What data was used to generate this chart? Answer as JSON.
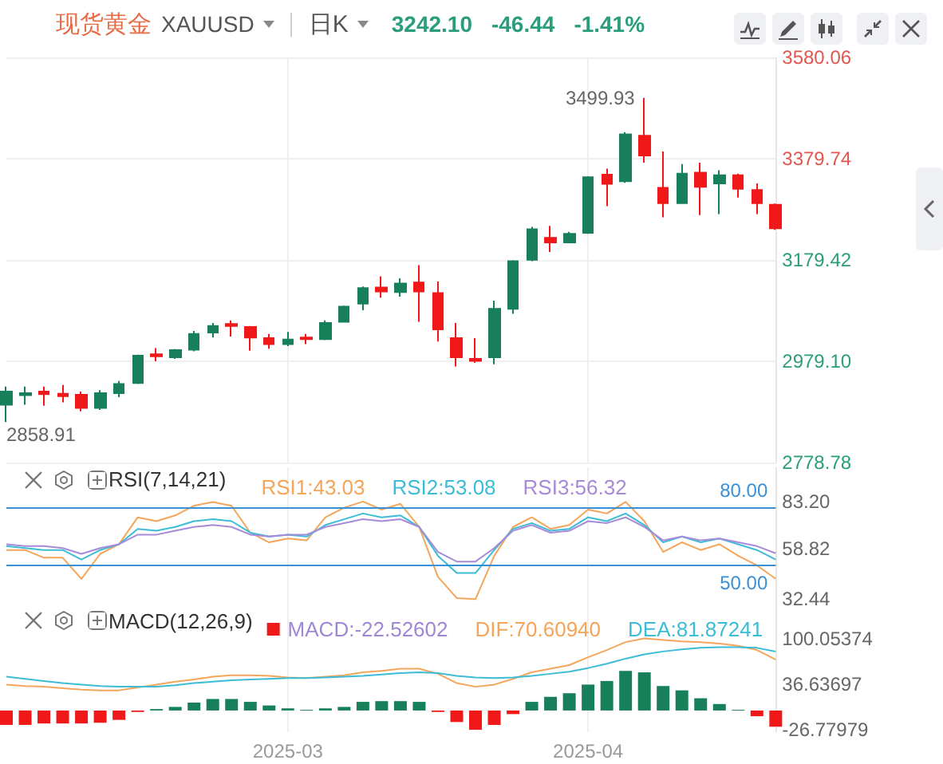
{
  "chart_data": [
    {
      "type": "candlestick",
      "title": "现货黄金",
      "subtitle": "XAUUSD",
      "annotations": [
        "日K",
        "3242.10",
        "-46.44",
        "-1.41%",
        "3499.93",
        "2858.91"
      ],
      "categories": [
        null,
        null,
        null,
        null,
        null,
        null,
        null,
        null,
        null,
        null,
        null,
        null,
        null,
        null,
        null,
        "2025-03",
        null,
        null,
        null,
        null,
        null,
        null,
        null,
        null,
        null,
        null,
        null,
        null,
        null,
        null,
        null,
        "2025-04",
        null,
        null,
        null,
        null,
        null,
        null,
        null,
        null,
        null,
        null
      ],
      "ohlc": [
        [
          2893,
          2929,
          2858.91,
          2919
        ],
        [
          2912,
          2929,
          2893,
          2916
        ],
        [
          2919,
          2929,
          2891,
          2914
        ],
        [
          2915,
          2932,
          2898,
          2910
        ],
        [
          2913,
          2919,
          2880,
          2887
        ],
        [
          2887,
          2922,
          2883,
          2916
        ],
        [
          2916,
          2940,
          2908,
          2934
        ],
        [
          2936,
          2992,
          2934,
          2990
        ],
        [
          2993,
          3005,
          2979,
          2989
        ],
        [
          2987,
          3003,
          2984,
          3001
        ],
        [
          3002,
          3039,
          2999,
          3033
        ],
        [
          3036,
          3055,
          3026,
          3049
        ],
        [
          3053,
          3060,
          3028,
          3049
        ],
        [
          3047,
          3049,
          3000,
          3026
        ],
        [
          3025,
          3033,
          3004,
          3013
        ],
        [
          3013,
          3037,
          3009,
          3022
        ],
        [
          3026,
          3033,
          3013,
          3023
        ],
        [
          3023,
          3060,
          3021,
          3055
        ],
        [
          3057,
          3089,
          3057,
          3087
        ],
        [
          3093,
          3127,
          3080,
          3124
        ],
        [
          3125,
          3147,
          3105,
          3117
        ],
        [
          3116,
          3143,
          3107,
          3133
        ],
        [
          3135,
          3169,
          3057,
          3117
        ],
        [
          3114,
          3137,
          3018,
          3042
        ],
        [
          3025,
          3055,
          2969,
          2987
        ],
        [
          2984,
          3025,
          2976,
          2980
        ],
        [
          2987,
          3099,
          2973,
          3083
        ],
        [
          3083,
          3179,
          3073,
          3177
        ],
        [
          3180,
          3245,
          3177,
          3240
        ],
        [
          3223,
          3247,
          3195,
          3214
        ],
        [
          3214,
          3235,
          3214,
          3231
        ],
        [
          3233,
          3345,
          3231,
          3343
        ],
        [
          3348,
          3360,
          3286,
          3330
        ],
        [
          3335,
          3432,
          3332,
          3428
        ],
        [
          3425,
          3499.93,
          3372,
          3386
        ],
        [
          3322,
          3394,
          3264,
          3292
        ],
        [
          3292,
          3369,
          3292,
          3350
        ],
        [
          3352,
          3372,
          3268,
          3324
        ],
        [
          3331,
          3357,
          3270,
          3347
        ],
        [
          3347,
          3350,
          3303,
          3320
        ],
        [
          3318,
          3331,
          3270,
          3292
        ],
        [
          3288.54,
          3291,
          3239,
          3242.1
        ]
      ],
      "colors": [
        "#17805a",
        "#17805a",
        "#f01818",
        "#f01818",
        "#f01818",
        "#17805a",
        "#17805a",
        "#17805a",
        "#f01818",
        "#17805a",
        "#17805a",
        "#17805a",
        "#f01818",
        "#f01818",
        "#f01818",
        "#17805a",
        "#f01818",
        "#17805a",
        "#17805a",
        "#17805a",
        "#f01818",
        "#17805a",
        "#f01818",
        "#f01818",
        "#f01818",
        "#f01818",
        "#17805a",
        "#17805a",
        "#17805a",
        "#f01818",
        "#17805a",
        "#17805a",
        "#f01818",
        "#17805a",
        "#f01818",
        "#f01818",
        "#17805a",
        "#f01818",
        "#17805a",
        "#f01818",
        "#f01818",
        "#f01818"
      ],
      "ylim": [
        2778.78,
        3580.06
      ],
      "yticks": [
        2778.78,
        {
          "value": 2979.1,
          "label": "2979.10"
        },
        3179.42,
        3379.74,
        3580.06
      ],
      "grid": true,
      "tick_labels": "y"
    },
    {
      "type": "line",
      "legend_title": "RSI(7,14,21)",
      "categories": [
        null,
        null,
        null,
        null,
        null,
        null,
        null,
        null,
        null,
        null,
        null,
        null,
        null,
        null,
        null,
        "2025-03",
        null,
        null,
        null,
        null,
        null,
        null,
        null,
        null,
        null,
        null,
        null,
        null,
        null,
        null,
        null,
        "2025-04",
        null,
        null,
        null,
        null,
        null,
        null,
        null,
        null,
        null,
        null
      ],
      "series": [
        {
          "name": "RSI1:43.03",
          "color": "#f5a55a",
          "values": [
            58,
            58,
            54,
            54,
            43,
            56,
            61,
            75,
            73,
            76,
            81,
            83,
            81,
            67,
            62,
            64,
            63,
            75,
            80,
            83.2,
            79,
            82,
            70,
            44,
            33,
            32.44,
            55,
            70,
            75,
            69,
            71,
            79,
            77,
            83,
            73,
            57,
            62,
            58,
            61,
            55,
            50,
            43.03
          ]
        },
        {
          "name": "RSI2:53.08",
          "color": "#3cbcd6",
          "values": [
            60,
            59,
            58,
            58,
            53,
            58,
            61,
            69,
            68,
            70,
            73,
            74,
            73,
            67,
            65,
            66,
            65,
            71,
            74,
            77,
            75,
            76,
            70,
            55,
            46,
            46,
            58,
            69,
            72,
            68,
            69,
            75,
            73,
            77,
            71,
            62,
            65,
            62,
            64,
            61,
            58,
            53.08
          ]
        },
        {
          "name": "RSI3:56.32",
          "color": "#a78bd9",
          "values": [
            61,
            60,
            60,
            59,
            56,
            59,
            61,
            66,
            66,
            68,
            70,
            71,
            70,
            66,
            65,
            66,
            66,
            70,
            72,
            74,
            73,
            74,
            70,
            57,
            52,
            52,
            59,
            68,
            71,
            67,
            68,
            73,
            72,
            75,
            70,
            63,
            65,
            63,
            64,
            62,
            60,
            56.32
          ]
        }
      ],
      "ylim": [
        28,
        101
      ],
      "yticks": [
        32.44,
        58.82,
        {
          "value": 83.2,
          "label": "83.20"
        }
      ],
      "ref_lines": [
        {
          "axis": "y",
          "value": 80,
          "label": "80.00",
          "color": "#3a90d6"
        },
        {
          "axis": "y",
          "value": 50,
          "label": "50.00",
          "color": "#3a90d6"
        }
      ],
      "legend": "top",
      "grid": "x",
      "tick_labels": "y",
      "marker": "none"
    },
    {
      "type": "line",
      "legend_title": "MACD(12,26,9)",
      "categories": [
        null,
        null,
        null,
        null,
        null,
        null,
        null,
        null,
        null,
        null,
        null,
        null,
        null,
        null,
        null,
        "2025-03",
        null,
        null,
        null,
        null,
        null,
        null,
        null,
        null,
        null,
        null,
        null,
        null,
        null,
        null,
        null,
        "2025-04",
        null,
        null,
        null,
        null,
        null,
        null,
        null,
        null,
        null,
        null
      ],
      "series": [
        {
          "name": "MACD:-22.52602",
          "type": "bar",
          "colors": [
            "#f01818",
            "#f01818",
            "#f01818",
            "#f01818",
            "#f01818",
            "#f01818",
            "#f01818",
            "#f01818",
            "#17805a",
            "#17805a",
            "#17805a",
            "#17805a",
            "#17805a",
            "#17805a",
            "#17805a",
            "#17805a",
            "#17805a",
            "#17805a",
            "#17805a",
            "#17805a",
            "#17805a",
            "#17805a",
            "#17805a",
            "#f01818",
            "#f01818",
            "#f01818",
            "#f01818",
            "#f01818",
            "#17805a",
            "#17805a",
            "#17805a",
            "#17805a",
            "#17805a",
            "#17805a",
            "#17805a",
            "#17805a",
            "#17805a",
            "#17805a",
            "#17805a",
            "#17805a",
            "#f01818",
            "#f01818"
          ],
          "values": [
            -20,
            -20,
            -18,
            -18,
            -18,
            -17,
            -13,
            -2,
            2,
            5,
            11,
            16,
            16,
            12,
            7,
            3,
            1,
            3,
            5,
            12,
            13,
            13,
            12,
            -2,
            -16,
            -26.78,
            -20,
            -5,
            12,
            19,
            24,
            36,
            41,
            55,
            53,
            34,
            28,
            17,
            9,
            1,
            -8,
            -22.53
          ]
        },
        {
          "name": "DIF:70.60940",
          "color": "#f5a55a",
          "values": [
            36,
            34,
            33,
            31,
            29,
            28,
            28,
            32,
            36,
            40,
            43,
            47,
            49,
            49,
            48,
            46,
            45,
            47,
            49,
            53,
            55,
            58,
            58,
            51,
            38,
            33,
            36,
            44,
            53,
            58,
            63,
            74,
            84,
            95,
            100.05,
            98,
            96,
            95,
            93,
            90,
            84,
            70.61
          ]
        },
        {
          "name": "DEA:81.87241",
          "color": "#3cbcd6",
          "values": [
            47,
            44,
            41,
            38,
            36,
            34,
            33,
            33,
            33,
            35,
            38,
            40,
            42,
            43,
            44,
            45,
            45,
            46,
            47,
            48,
            50,
            52,
            53,
            52,
            48,
            46,
            45,
            46,
            48,
            51,
            54,
            59,
            65,
            72,
            78,
            82,
            85,
            87,
            88,
            88,
            87,
            81.87
          ]
        }
      ],
      "ylim": [
        -30,
        145
      ],
      "yticks": [
        -26.77979,
        36.63697,
        100.05374
      ],
      "legend": "top",
      "grid": "x",
      "marker": "none"
    }
  ]
}
